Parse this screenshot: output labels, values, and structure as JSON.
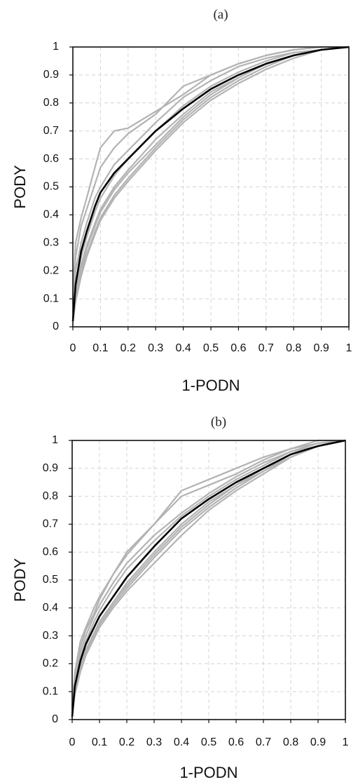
{
  "chart_data": [
    {
      "type": "line",
      "title": "(a)",
      "xlabel": "1-PODN",
      "ylabel": "PODY",
      "xlim": [
        0,
        1
      ],
      "ylim": [
        0,
        1
      ],
      "xticks": [
        "0",
        "0.1",
        "0.2",
        "0.3",
        "0.4",
        "0.5",
        "0.6",
        "0.7",
        "0.8",
        "0.9",
        "1"
      ],
      "yticks": [
        "0",
        "0.1",
        "0.2",
        "0.3",
        "0.4",
        "0.5",
        "0.6",
        "0.7",
        "0.8",
        "0.9",
        "1"
      ],
      "grid": true,
      "legend": "none",
      "colors": {
        "individual": "#b3b3b3",
        "mean": "#000000"
      },
      "series": [
        {
          "role": "mean",
          "x": [
            0,
            0.01,
            0.03,
            0.05,
            0.08,
            0.1,
            0.15,
            0.2,
            0.3,
            0.4,
            0.5,
            0.6,
            0.7,
            0.8,
            0.9,
            1.0
          ],
          "y": [
            0.02,
            0.15,
            0.27,
            0.34,
            0.43,
            0.48,
            0.55,
            0.6,
            0.7,
            0.78,
            0.85,
            0.9,
            0.94,
            0.97,
            0.99,
            1.0
          ]
        },
        {
          "role": "individual",
          "x": [
            0,
            0.01,
            0.03,
            0.05,
            0.08,
            0.1,
            0.15,
            0.2,
            0.3,
            0.4,
            0.5,
            0.6,
            0.7,
            0.8,
            0.9,
            1.0
          ],
          "y": [
            0.1,
            0.3,
            0.39,
            0.46,
            0.57,
            0.64,
            0.7,
            0.71,
            0.77,
            0.83,
            0.9,
            0.94,
            0.97,
            0.99,
            1.0,
            1.0
          ]
        },
        {
          "role": "individual",
          "x": [
            0,
            0.01,
            0.03,
            0.05,
            0.08,
            0.1,
            0.15,
            0.2,
            0.3,
            0.4,
            0.5,
            0.6,
            0.7,
            0.8,
            0.9,
            1.0
          ],
          "y": [
            0.08,
            0.25,
            0.36,
            0.42,
            0.51,
            0.57,
            0.64,
            0.69,
            0.76,
            0.86,
            0.9,
            0.94,
            0.97,
            0.99,
            1.0,
            1.0
          ]
        },
        {
          "role": "individual",
          "x": [
            0,
            0.01,
            0.03,
            0.05,
            0.08,
            0.1,
            0.15,
            0.2,
            0.3,
            0.4,
            0.5,
            0.6,
            0.7,
            0.8,
            0.9,
            1.0
          ],
          "y": [
            0.05,
            0.2,
            0.3,
            0.37,
            0.46,
            0.5,
            0.58,
            0.63,
            0.73,
            0.82,
            0.88,
            0.93,
            0.96,
            0.98,
            0.99,
            1.0
          ]
        },
        {
          "role": "individual",
          "x": [
            0,
            0.01,
            0.03,
            0.05,
            0.08,
            0.1,
            0.15,
            0.2,
            0.3,
            0.4,
            0.5,
            0.6,
            0.7,
            0.8,
            0.9,
            1.0
          ],
          "y": [
            0.02,
            0.12,
            0.22,
            0.29,
            0.37,
            0.42,
            0.5,
            0.56,
            0.67,
            0.76,
            0.84,
            0.89,
            0.94,
            0.97,
            0.99,
            1.0
          ]
        },
        {
          "role": "individual",
          "x": [
            0,
            0.01,
            0.03,
            0.05,
            0.08,
            0.1,
            0.15,
            0.2,
            0.3,
            0.4,
            0.5,
            0.6,
            0.7,
            0.8,
            0.9,
            1.0
          ],
          "y": [
            0.02,
            0.1,
            0.2,
            0.26,
            0.34,
            0.39,
            0.47,
            0.53,
            0.64,
            0.74,
            0.82,
            0.88,
            0.93,
            0.97,
            0.99,
            1.0
          ]
        },
        {
          "role": "individual",
          "x": [
            0,
            0.01,
            0.03,
            0.05,
            0.08,
            0.1,
            0.15,
            0.2,
            0.3,
            0.4,
            0.5,
            0.6,
            0.7,
            0.8,
            0.9,
            1.0
          ],
          "y": [
            0.02,
            0.09,
            0.18,
            0.25,
            0.33,
            0.38,
            0.46,
            0.52,
            0.63,
            0.73,
            0.81,
            0.87,
            0.92,
            0.96,
            0.99,
            1.0
          ]
        },
        {
          "role": "individual",
          "x": [
            0,
            0.01,
            0.03,
            0.05,
            0.08,
            0.1,
            0.15,
            0.2,
            0.3,
            0.4,
            0.5,
            0.6,
            0.7,
            0.8,
            0.9,
            1.0
          ],
          "y": [
            0.03,
            0.14,
            0.25,
            0.32,
            0.41,
            0.46,
            0.54,
            0.6,
            0.7,
            0.79,
            0.86,
            0.91,
            0.95,
            0.98,
            0.99,
            1.0
          ]
        },
        {
          "role": "individual",
          "x": [
            0,
            0.01,
            0.03,
            0.05,
            0.08,
            0.1,
            0.15,
            0.2,
            0.3,
            0.4,
            0.5,
            0.6,
            0.7,
            0.8,
            0.9,
            1.0
          ],
          "y": [
            0.02,
            0.11,
            0.21,
            0.28,
            0.36,
            0.41,
            0.49,
            0.55,
            0.65,
            0.75,
            0.83,
            0.89,
            0.94,
            0.97,
            0.99,
            1.0
          ]
        }
      ]
    },
    {
      "type": "line",
      "title": "(b)",
      "xlabel": "1-PODN",
      "ylabel": "PODY",
      "xlim": [
        0,
        1
      ],
      "ylim": [
        0,
        1
      ],
      "xticks": [
        "0",
        "0.1",
        "0.2",
        "0.3",
        "0.4",
        "0.5",
        "0.6",
        "0.7",
        "0.8",
        "0.9",
        "1"
      ],
      "yticks": [
        "0",
        "0.1",
        "0.2",
        "0.3",
        "0.4",
        "0.5",
        "0.6",
        "0.7",
        "0.8",
        "0.9",
        "1"
      ],
      "grid": true,
      "legend": "none",
      "colors": {
        "individual": "#b3b3b3",
        "mean": "#000000"
      },
      "series": [
        {
          "role": "mean",
          "x": [
            0,
            0.01,
            0.03,
            0.05,
            0.08,
            0.1,
            0.15,
            0.2,
            0.3,
            0.4,
            0.5,
            0.6,
            0.7,
            0.8,
            0.9,
            1.0
          ],
          "y": [
            0.01,
            0.12,
            0.21,
            0.27,
            0.33,
            0.37,
            0.44,
            0.51,
            0.62,
            0.72,
            0.79,
            0.85,
            0.9,
            0.95,
            0.98,
            1.0
          ]
        },
        {
          "role": "individual",
          "x": [
            0,
            0.01,
            0.03,
            0.05,
            0.08,
            0.1,
            0.15,
            0.2,
            0.3,
            0.4,
            0.5,
            0.6,
            0.7,
            0.8,
            0.9,
            1.0
          ],
          "y": [
            0.05,
            0.17,
            0.28,
            0.33,
            0.4,
            0.44,
            0.52,
            0.6,
            0.7,
            0.82,
            0.86,
            0.9,
            0.94,
            0.97,
            1.0,
            1.0
          ]
        },
        {
          "role": "individual",
          "x": [
            0,
            0.01,
            0.03,
            0.05,
            0.08,
            0.1,
            0.15,
            0.2,
            0.3,
            0.4,
            0.5,
            0.6,
            0.7,
            0.8,
            0.9,
            1.0
          ],
          "y": [
            0.04,
            0.16,
            0.26,
            0.32,
            0.38,
            0.43,
            0.52,
            0.59,
            0.7,
            0.8,
            0.84,
            0.88,
            0.93,
            0.97,
            0.99,
            1.0
          ]
        },
        {
          "role": "individual",
          "x": [
            0,
            0.01,
            0.03,
            0.05,
            0.08,
            0.1,
            0.15,
            0.2,
            0.3,
            0.4,
            0.5,
            0.6,
            0.7,
            0.8,
            0.9,
            1.0
          ],
          "y": [
            0.03,
            0.14,
            0.24,
            0.3,
            0.37,
            0.41,
            0.49,
            0.56,
            0.66,
            0.74,
            0.81,
            0.87,
            0.92,
            0.96,
            0.99,
            1.0
          ]
        },
        {
          "role": "individual",
          "x": [
            0,
            0.01,
            0.03,
            0.05,
            0.08,
            0.1,
            0.15,
            0.2,
            0.3,
            0.4,
            0.5,
            0.6,
            0.7,
            0.8,
            0.9,
            1.0
          ],
          "y": [
            0.02,
            0.11,
            0.19,
            0.25,
            0.31,
            0.35,
            0.42,
            0.49,
            0.6,
            0.7,
            0.78,
            0.84,
            0.9,
            0.95,
            0.98,
            1.0
          ]
        },
        {
          "role": "individual",
          "x": [
            0,
            0.01,
            0.03,
            0.05,
            0.08,
            0.1,
            0.15,
            0.2,
            0.3,
            0.4,
            0.5,
            0.6,
            0.7,
            0.8,
            0.9,
            1.0
          ],
          "y": [
            0.02,
            0.1,
            0.18,
            0.24,
            0.3,
            0.34,
            0.41,
            0.47,
            0.58,
            0.68,
            0.76,
            0.83,
            0.89,
            0.94,
            0.98,
            1.0
          ]
        },
        {
          "role": "individual",
          "x": [
            0,
            0.01,
            0.03,
            0.05,
            0.08,
            0.1,
            0.15,
            0.2,
            0.3,
            0.4,
            0.5,
            0.6,
            0.7,
            0.8,
            0.9,
            1.0
          ],
          "y": [
            0.02,
            0.09,
            0.17,
            0.23,
            0.29,
            0.33,
            0.4,
            0.46,
            0.56,
            0.66,
            0.75,
            0.82,
            0.88,
            0.94,
            0.98,
            1.0
          ]
        },
        {
          "role": "individual",
          "x": [
            0,
            0.01,
            0.03,
            0.05,
            0.08,
            0.1,
            0.15,
            0.2,
            0.3,
            0.4,
            0.5,
            0.6,
            0.7,
            0.8,
            0.9,
            1.0
          ],
          "y": [
            0.02,
            0.12,
            0.22,
            0.28,
            0.35,
            0.39,
            0.47,
            0.54,
            0.64,
            0.73,
            0.8,
            0.86,
            0.91,
            0.96,
            0.98,
            1.0
          ]
        },
        {
          "role": "individual",
          "x": [
            0,
            0.01,
            0.03,
            0.05,
            0.08,
            0.1,
            0.15,
            0.2,
            0.3,
            0.4,
            0.5,
            0.6,
            0.7,
            0.8,
            0.9,
            1.0
          ],
          "y": [
            0.02,
            0.1,
            0.18,
            0.24,
            0.3,
            0.35,
            0.42,
            0.48,
            0.59,
            0.69,
            0.77,
            0.84,
            0.89,
            0.95,
            0.98,
            1.0
          ]
        }
      ]
    }
  ]
}
